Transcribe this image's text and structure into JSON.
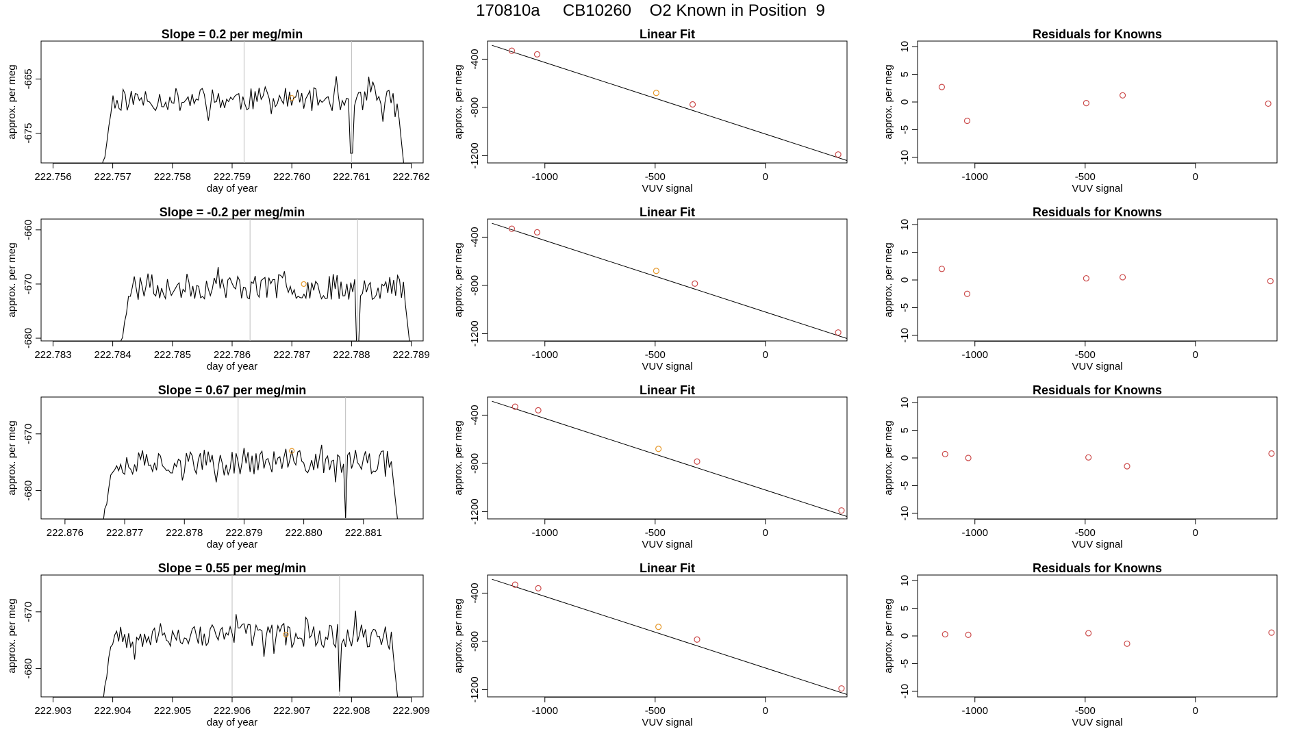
{
  "page": {
    "title": "170810a     CB10260    O2 Known in Position  9"
  },
  "colors": {
    "line": "#000000",
    "vline": "#bdbdbd",
    "known": "#cc4c4c",
    "sample": "#e69a2e"
  },
  "rows": [
    {
      "time_panel": {
        "title": "Slope =  0.2  per meg/min",
        "xlabel": "day of year",
        "ylabel": "approx. per meg",
        "xlim": [
          222.7558,
          222.7622
        ],
        "ylim": [
          -680.5,
          -658
        ],
        "xticks": [
          222.756,
          222.757,
          222.758,
          222.759,
          222.76,
          222.761,
          222.762
        ],
        "xtick_labels": [
          "222.756",
          "222.757",
          "222.758",
          "222.759",
          "222.760",
          "222.761",
          "222.762"
        ],
        "yticks": [
          -665,
          -675
        ],
        "ytick_labels": [
          "-665",
          "-675"
        ],
        "vlines": [
          222.7592,
          222.761
        ],
        "sample_point": {
          "x": 222.76,
          "y": -668.5
        },
        "trace": {
          "start": 222.7568,
          "end": 222.7619,
          "base": -668.8,
          "amp": 2.2,
          "seed": 11
        }
      },
      "fit_panel": {
        "title": "Linear Fit",
        "xlabel": "VUV signal",
        "ylabel": "approx. per meg",
        "xlim": [
          -1260,
          370
        ],
        "ylim": [
          -1260,
          -250
        ],
        "xticks": [
          -1000,
          -500,
          0
        ],
        "xtick_labels": [
          "-1000",
          "-500",
          "0"
        ],
        "yticks": [
          -400,
          -800,
          -1200
        ],
        "ytick_labels": [
          "-400",
          "-800",
          "-1200"
        ],
        "line": {
          "x1": -1240,
          "y1": -285,
          "x2": 370,
          "y2": -1240
        },
        "knowns": [
          {
            "x": -1150,
            "y": -330
          },
          {
            "x": -1035,
            "y": -360
          },
          {
            "x": -330,
            "y": -775
          },
          {
            "x": 330,
            "y": -1190
          }
        ],
        "sample": {
          "x": -495,
          "y": -680
        }
      },
      "resid_panel": {
        "title": "Residuals for Knowns",
        "xlabel": "VUV signal",
        "ylabel": "approx. per meg",
        "xlim": [
          -1260,
          370
        ],
        "ylim": [
          -11,
          11
        ],
        "xticks": [
          -1000,
          -500,
          0
        ],
        "xtick_labels": [
          "-1000",
          "-500",
          "0"
        ],
        "yticks": [
          10,
          5,
          0,
          -5,
          -10
        ],
        "ytick_labels": [
          "10",
          "5",
          "0",
          "-5",
          "-10"
        ],
        "points": [
          {
            "x": -1150,
            "y": 2.7
          },
          {
            "x": -1035,
            "y": -3.4
          },
          {
            "x": -495,
            "y": -0.2
          },
          {
            "x": -330,
            "y": 1.2
          },
          {
            "x": 330,
            "y": -0.3
          }
        ]
      }
    },
    {
      "time_panel": {
        "title": "Slope =  -0.2  per meg/min",
        "xlabel": "day of year",
        "ylabel": "approx. per meg",
        "xlim": [
          222.7828,
          222.7892
        ],
        "ylim": [
          -680.5,
          -658
        ],
        "xticks": [
          222.783,
          222.784,
          222.785,
          222.786,
          222.787,
          222.788,
          222.789
        ],
        "xtick_labels": [
          "222.783",
          "222.784",
          "222.785",
          "222.786",
          "222.787",
          "222.788",
          "222.789"
        ],
        "yticks": [
          -660,
          -670,
          -680
        ],
        "ytick_labels": [
          "-660",
          "-670",
          "-680"
        ],
        "vlines": [
          222.7863,
          222.7881
        ],
        "sample_point": {
          "x": 222.7872,
          "y": -670
        },
        "trace": {
          "start": 222.7841,
          "end": 222.789,
          "base": -670.5,
          "amp": 2.4,
          "seed": 23
        }
      },
      "fit_panel": {
        "title": "Linear Fit",
        "xlabel": "VUV signal",
        "ylabel": "approx. per meg",
        "xlim": [
          -1260,
          370
        ],
        "ylim": [
          -1260,
          -250
        ],
        "xticks": [
          -1000,
          -500,
          0
        ],
        "xtick_labels": [
          "-1000",
          "-500",
          "0"
        ],
        "yticks": [
          -400,
          -800,
          -1200
        ],
        "ytick_labels": [
          "-400",
          "-800",
          "-1200"
        ],
        "line": {
          "x1": -1240,
          "y1": -285,
          "x2": 370,
          "y2": -1240
        },
        "knowns": [
          {
            "x": -1150,
            "y": -330
          },
          {
            "x": -1035,
            "y": -360
          },
          {
            "x": -320,
            "y": -785
          },
          {
            "x": 330,
            "y": -1190
          }
        ],
        "sample": {
          "x": -495,
          "y": -680
        }
      },
      "resid_panel": {
        "title": "Residuals for Knowns",
        "xlabel": "VUV signal",
        "ylabel": "approx. per meg",
        "xlim": [
          -1260,
          370
        ],
        "ylim": [
          -11,
          11
        ],
        "xticks": [
          -1000,
          -500,
          0
        ],
        "xtick_labels": [
          "-1000",
          "-500",
          "0"
        ],
        "yticks": [
          10,
          5,
          0,
          -5,
          -10
        ],
        "ytick_labels": [
          "10",
          "5",
          "0",
          "-5",
          "-10"
        ],
        "points": [
          {
            "x": -1150,
            "y": 2.0
          },
          {
            "x": -1035,
            "y": -2.5
          },
          {
            "x": -495,
            "y": 0.3
          },
          {
            "x": -330,
            "y": 0.5
          },
          {
            "x": 340,
            "y": -0.2
          }
        ]
      }
    },
    {
      "time_panel": {
        "title": "Slope =  0.67  per meg/min",
        "xlabel": "day of year",
        "ylabel": "approx. per meg",
        "xlim": [
          222.8756,
          222.882
        ],
        "ylim": [
          -685,
          -663.5
        ],
        "xticks": [
          222.876,
          222.877,
          222.878,
          222.879,
          222.88,
          222.881
        ],
        "xtick_labels": [
          "222.876",
          "222.877",
          "222.878",
          "222.879",
          "222.880",
          "222.881"
        ],
        "yticks": [
          -670,
          -680
        ],
        "ytick_labels": [
          "-670",
          "-680"
        ],
        "vlines": [
          222.8789,
          222.8807
        ],
        "sample_point": {
          "x": 222.8798,
          "y": -673
        },
        "trace": {
          "start": 222.8766,
          "end": 222.8816,
          "base": -675,
          "amp": 2.2,
          "seed": 37
        }
      },
      "fit_panel": {
        "title": "Linear Fit",
        "xlabel": "VUV signal",
        "ylabel": "approx. per meg",
        "xlim": [
          -1260,
          370
        ],
        "ylim": [
          -1260,
          -250
        ],
        "xticks": [
          -1000,
          -500,
          0
        ],
        "xtick_labels": [
          "-1000",
          "-500",
          "0"
        ],
        "yticks": [
          -400,
          -800,
          -1200
        ],
        "ytick_labels": [
          "-400",
          "-800",
          "-1200"
        ],
        "line": {
          "x1": -1240,
          "y1": -285,
          "x2": 370,
          "y2": -1240
        },
        "knowns": [
          {
            "x": -1135,
            "y": -330
          },
          {
            "x": -1030,
            "y": -360
          },
          {
            "x": -310,
            "y": -785
          },
          {
            "x": 345,
            "y": -1190
          }
        ],
        "sample": {
          "x": -485,
          "y": -680
        }
      },
      "resid_panel": {
        "title": "Residuals for Knowns",
        "xlabel": "VUV signal",
        "ylabel": "approx. per meg",
        "xlim": [
          -1260,
          370
        ],
        "ylim": [
          -11,
          11
        ],
        "xticks": [
          -1000,
          -500,
          0
        ],
        "xtick_labels": [
          "-1000",
          "-500",
          "0"
        ],
        "yticks": [
          10,
          5,
          0,
          -5,
          -10
        ],
        "ytick_labels": [
          "10",
          "5",
          "0",
          "-5",
          "-10"
        ],
        "points": [
          {
            "x": -1135,
            "y": 0.7
          },
          {
            "x": -1030,
            "y": 0.0
          },
          {
            "x": -485,
            "y": 0.1
          },
          {
            "x": -310,
            "y": -1.5
          },
          {
            "x": 345,
            "y": 0.8
          }
        ]
      }
    },
    {
      "time_panel": {
        "title": "Slope =  0.55  per meg/min",
        "xlabel": "day of year",
        "ylabel": "approx. per meg",
        "xlim": [
          222.9028,
          222.9092
        ],
        "ylim": [
          -685,
          -663.5
        ],
        "xticks": [
          222.903,
          222.904,
          222.905,
          222.906,
          222.907,
          222.908,
          222.909
        ],
        "xtick_labels": [
          "222.903",
          "222.904",
          "222.905",
          "222.906",
          "222.907",
          "222.908",
          "222.909"
        ],
        "yticks": [
          -670,
          -680
        ],
        "ytick_labels": [
          "-670",
          "-680"
        ],
        "vlines": [
          222.906,
          222.9078
        ],
        "sample_point": {
          "x": 222.9069,
          "y": -674
        },
        "trace": {
          "start": 222.9038,
          "end": 222.9088,
          "base": -674.2,
          "amp": 2.2,
          "seed": 53
        }
      },
      "fit_panel": {
        "title": "Linear Fit",
        "xlabel": "VUV signal",
        "ylabel": "approx. per meg",
        "xlim": [
          -1260,
          370
        ],
        "ylim": [
          -1260,
          -250
        ],
        "xticks": [
          -1000,
          -500,
          0
        ],
        "xtick_labels": [
          "-1000",
          "-500",
          "0"
        ],
        "yticks": [
          -400,
          -800,
          -1200
        ],
        "ytick_labels": [
          "-400",
          "-800",
          "-1200"
        ],
        "line": {
          "x1": -1240,
          "y1": -285,
          "x2": 370,
          "y2": -1240
        },
        "knowns": [
          {
            "x": -1135,
            "y": -330
          },
          {
            "x": -1030,
            "y": -360
          },
          {
            "x": -310,
            "y": -785
          },
          {
            "x": 345,
            "y": -1190
          }
        ],
        "sample": {
          "x": -485,
          "y": -680
        }
      },
      "resid_panel": {
        "title": "Residuals for Knowns",
        "xlabel": "VUV signal",
        "ylabel": "approx. per meg",
        "xlim": [
          -1260,
          370
        ],
        "ylim": [
          -11,
          11
        ],
        "xticks": [
          -1000,
          -500,
          0
        ],
        "xtick_labels": [
          "-1000",
          "-500",
          "0"
        ],
        "yticks": [
          10,
          5,
          0,
          -5,
          -10
        ],
        "ytick_labels": [
          "10",
          "5",
          "0",
          "-5",
          "-10"
        ],
        "points": [
          {
            "x": -1135,
            "y": 0.3
          },
          {
            "x": -1030,
            "y": 0.2
          },
          {
            "x": -485,
            "y": 0.5
          },
          {
            "x": -310,
            "y": -1.4
          },
          {
            "x": 345,
            "y": 0.6
          }
        ]
      }
    }
  ]
}
